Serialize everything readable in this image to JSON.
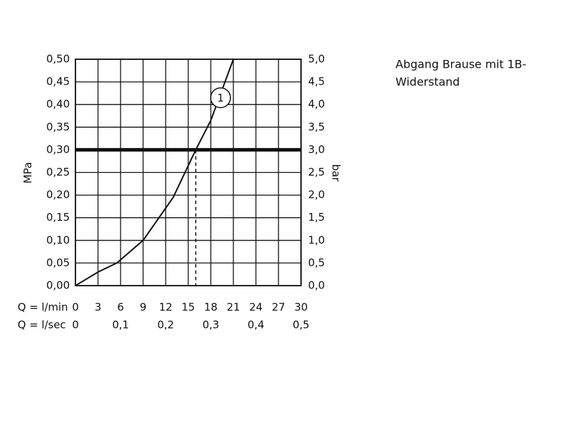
{
  "chart_data": {
    "type": "line",
    "side_text": [
      "Abgang Brause mit 1B-",
      "Widerstand"
    ],
    "ylabel": "MPa",
    "y2label": "bar",
    "xlabel": "Q = l/min",
    "x2label": "Q = l/sec",
    "xlim": [
      0,
      30
    ],
    "xticks": [
      0,
      3,
      6,
      9,
      12,
      15,
      18,
      21,
      24,
      27,
      30
    ],
    "x2lim": [
      0,
      0.5
    ],
    "x2ticks": [
      0,
      {
        "value": 0.1,
        "label": "0,1"
      },
      {
        "value": 0.2,
        "label": "0,2"
      },
      {
        "value": 0.3,
        "label": "0,3"
      },
      {
        "value": 0.4,
        "label": "0,4"
      },
      {
        "value": 0.5,
        "label": "0,5"
      }
    ],
    "ylim": [
      0,
      0.5
    ],
    "yticks": [
      {
        "value": 0,
        "label": "0,00"
      },
      {
        "value": 0.05,
        "label": "0,05"
      },
      {
        "value": 0.1,
        "label": "0,10"
      },
      {
        "value": 0.15,
        "label": "0,15"
      },
      {
        "value": 0.2,
        "label": "0,20"
      },
      {
        "value": 0.25,
        "label": "0,25"
      },
      {
        "value": 0.3,
        "label": "0,30"
      },
      {
        "value": 0.35,
        "label": "0,35"
      },
      {
        "value": 0.4,
        "label": "0,40"
      },
      {
        "value": 0.45,
        "label": "0,45"
      },
      {
        "value": 0.5,
        "label": "0,50"
      }
    ],
    "y2lim": [
      0,
      5
    ],
    "y2ticks": [
      {
        "value": 0,
        "label": "0,0"
      },
      {
        "value": 0.5,
        "label": "0,5"
      },
      {
        "value": 1,
        "label": "1,0"
      },
      {
        "value": 1.5,
        "label": "1,5"
      },
      {
        "value": 2,
        "label": "2,0"
      },
      {
        "value": 2.5,
        "label": "2,5"
      },
      {
        "value": 3,
        "label": "3,0"
      },
      {
        "value": 3.5,
        "label": "3,5"
      },
      {
        "value": 4,
        "label": "4,0"
      },
      {
        "value": 4.5,
        "label": "4,5"
      },
      {
        "value": 5,
        "label": "5,0"
      }
    ],
    "grid": true,
    "reference": {
      "y": 0.3,
      "x": 16
    },
    "series": [
      {
        "name": "1",
        "color": "#111111",
        "label_x": 19.3,
        "label_y": 0.415,
        "x": [
          0,
          3,
          5.5,
          9,
          13,
          16,
          18,
          21
        ],
        "values": [
          0,
          0.03,
          0.05,
          0.1,
          0.195,
          0.3,
          0.365,
          0.5
        ]
      }
    ]
  }
}
